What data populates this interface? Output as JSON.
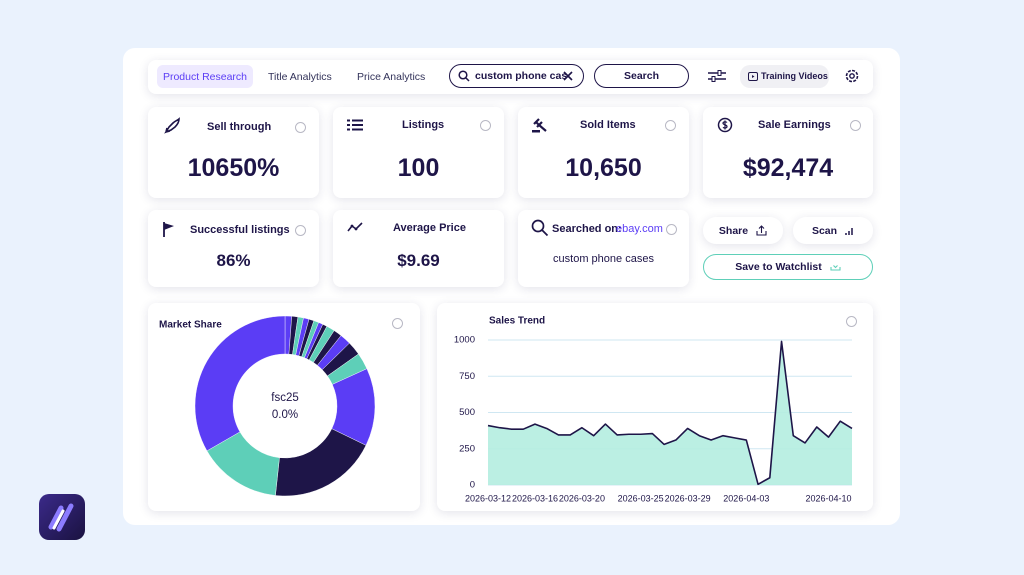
{
  "nav": {
    "tabs": [
      "Product Research",
      "Title Analytics",
      "Price Analytics"
    ],
    "search_query": "custom phone cas",
    "search_button": "Search",
    "training_button": "Training Videos"
  },
  "stats": [
    {
      "label": "Sell through",
      "value": "10650%"
    },
    {
      "label": "Listings",
      "value": "100"
    },
    {
      "label": "Sold Items",
      "value": "10,650"
    },
    {
      "label": "Sale Earnings",
      "value": "$92,474"
    },
    {
      "label": "Successful listings",
      "value": "86%"
    },
    {
      "label": "Average Price",
      "value": "$9.69"
    }
  ],
  "searched": {
    "label": "Searched on:",
    "site": "ebay.com",
    "query": "custom phone cases"
  },
  "actions": [
    "Share",
    "Scan",
    "Save to Watchlist"
  ],
  "chart_data": [
    {
      "type": "pie",
      "title": "Market Share",
      "center_text": [
        "fsc25",
        "0.0%"
      ],
      "values": [
        1.2,
        1.1,
        1.0,
        1.0,
        0.9,
        0.9,
        0.8,
        0.8,
        1.5,
        1.5,
        2.0,
        2.5,
        3.0,
        14.0,
        19.5,
        15.0,
        33.3
      ],
      "colors": [
        "#5b3df5",
        "#1e1548",
        "#5ecfb8",
        "#5b3df5",
        "#1e1548",
        "#5ecfb8",
        "#5b3df5",
        "#1e1548",
        "#5ecfb8",
        "#1e1548",
        "#5b3df5",
        "#1e1548",
        "#5ecfb8",
        "#5b3df5",
        "#1e1548",
        "#5ecfb8",
        "#5b3df5"
      ]
    },
    {
      "type": "line",
      "title": "Sales Trend",
      "x": [
        "2026-03-12",
        "2026-03-13",
        "2026-03-14",
        "2026-03-15",
        "2026-03-16",
        "2026-03-17",
        "2026-03-18",
        "2026-03-19",
        "2026-03-20",
        "2026-03-21",
        "2026-03-22",
        "2026-03-23",
        "2026-03-24",
        "2026-03-25",
        "2026-03-26",
        "2026-03-27",
        "2026-03-28",
        "2026-03-29",
        "2026-03-30",
        "2026-03-31",
        "2026-04-01",
        "2026-04-02",
        "2026-04-03",
        "2026-04-04",
        "2026-04-05",
        "2026-04-06",
        "2026-04-07",
        "2026-04-08",
        "2026-04-09",
        "2026-04-10",
        "2026-04-11",
        "2026-04-12"
      ],
      "xticks": [
        "2026-03-12",
        "2026-03-16",
        "2026-03-20",
        "2026-03-25",
        "2026-03-29",
        "2026-04-03",
        "2026-04-10"
      ],
      "ylim": [
        0,
        1000
      ],
      "yticks": [
        0,
        250,
        500,
        750,
        1000
      ],
      "grid": true,
      "series": [
        {
          "color": "#1e1548",
          "fill": "#b4ede0",
          "values": [
            410,
            395,
            385,
            385,
            420,
            390,
            345,
            345,
            395,
            340,
            420,
            345,
            350,
            350,
            355,
            280,
            310,
            390,
            340,
            310,
            340,
            325,
            310,
            5,
            50,
            990,
            340,
            290,
            400,
            330,
            440,
            390
          ]
        }
      ]
    }
  ]
}
